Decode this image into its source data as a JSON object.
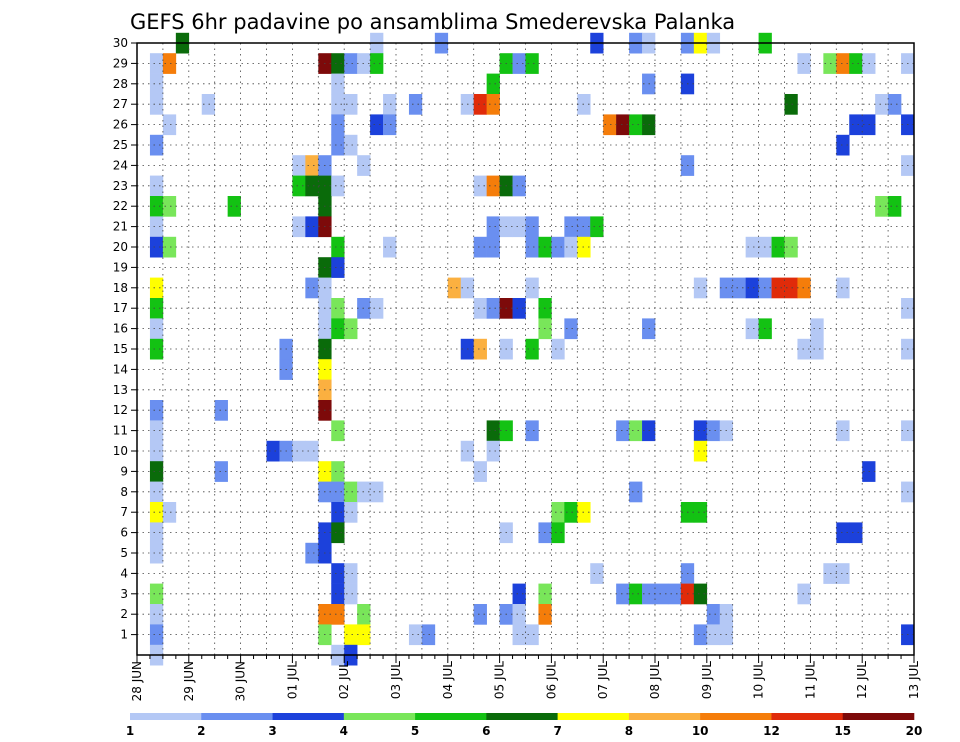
{
  "chart_data": {
    "type": "heatmap",
    "title": "GEFS 6hr padavine po ansamblima Smederevska Palanka",
    "xlabel": "",
    "ylabel": "",
    "x_ticks": [
      "28 JUN",
      "29 JUN",
      "30 JUN",
      "01 JUL",
      "02 JUL",
      "03 JUL",
      "04 JUL",
      "05 JUL",
      "06 JUL",
      "07 JUL",
      "08 JUL",
      "09 JUL",
      "10 JUL",
      "11 JUL",
      "12 JUL",
      "13 JUL"
    ],
    "y_ticks": [
      "1",
      "2",
      "3",
      "4",
      "5",
      "6",
      "7",
      "8",
      "9",
      "10",
      "11",
      "12",
      "13",
      "14",
      "15",
      "16",
      "17",
      "18",
      "19",
      "20",
      "21",
      "22",
      "23",
      "24",
      "25",
      "26",
      "27",
      "28",
      "29",
      "30"
    ],
    "x_range_steps": [
      0,
      60
    ],
    "y_range": [
      0,
      30
    ],
    "steps_per_day": 4,
    "grid": true,
    "colorbar": {
      "placement": "bottom",
      "colors": [
        "#b4c8f5",
        "#6a8ff0",
        "#1c41db",
        "#79e65a",
        "#13c213",
        "#0a6b0a",
        "#ffff00",
        "#fbb040",
        "#f57d0a",
        "#e02b0a",
        "#7d0a0a"
      ],
      "labels": [
        "1",
        "2",
        "3",
        "4",
        "5",
        "6",
        "7",
        "8",
        "10",
        "12",
        "15",
        "20"
      ]
    },
    "cells": [
      [
        30,
        3,
        5
      ],
      [
        30,
        18,
        0
      ],
      [
        30,
        23,
        1
      ],
      [
        30,
        35,
        2
      ],
      [
        30,
        38,
        1
      ],
      [
        30,
        39,
        0
      ],
      [
        30,
        42,
        1
      ],
      [
        30,
        43,
        6
      ],
      [
        30,
        44,
        0
      ],
      [
        30,
        48,
        4
      ],
      [
        29,
        1,
        0
      ],
      [
        29,
        2,
        8
      ],
      [
        29,
        14,
        10
      ],
      [
        29,
        15,
        5
      ],
      [
        29,
        16,
        1
      ],
      [
        29,
        17,
        0
      ],
      [
        29,
        18,
        4
      ],
      [
        29,
        28,
        4
      ],
      [
        29,
        29,
        1
      ],
      [
        29,
        30,
        4
      ],
      [
        29,
        51,
        0
      ],
      [
        29,
        53,
        3
      ],
      [
        29,
        54,
        8
      ],
      [
        29,
        55,
        4
      ],
      [
        29,
        56,
        0
      ],
      [
        29,
        59,
        0
      ],
      [
        28,
        1,
        0
      ],
      [
        28,
        15,
        0
      ],
      [
        28,
        27,
        4
      ],
      [
        28,
        39,
        1
      ],
      [
        28,
        42,
        2
      ],
      [
        27,
        1,
        0
      ],
      [
        27,
        5,
        0
      ],
      [
        27,
        15,
        0
      ],
      [
        27,
        16,
        0
      ],
      [
        27,
        19,
        0
      ],
      [
        27,
        21,
        1
      ],
      [
        27,
        25,
        0
      ],
      [
        27,
        26,
        9
      ],
      [
        27,
        27,
        8
      ],
      [
        27,
        34,
        0
      ],
      [
        27,
        50,
        5
      ],
      [
        27,
        57,
        0
      ],
      [
        27,
        58,
        1
      ],
      [
        26,
        2,
        0
      ],
      [
        26,
        15,
        1
      ],
      [
        26,
        18,
        2
      ],
      [
        26,
        19,
        1
      ],
      [
        26,
        36,
        8
      ],
      [
        26,
        37,
        10
      ],
      [
        26,
        38,
        4
      ],
      [
        26,
        39,
        5
      ],
      [
        26,
        55,
        2
      ],
      [
        26,
        56,
        2
      ],
      [
        26,
        59,
        2
      ],
      [
        25,
        1,
        1
      ],
      [
        25,
        15,
        1
      ],
      [
        25,
        16,
        0
      ],
      [
        25,
        54,
        2
      ],
      [
        24,
        12,
        0
      ],
      [
        24,
        13,
        7
      ],
      [
        24,
        14,
        1
      ],
      [
        24,
        17,
        0
      ],
      [
        24,
        42,
        1
      ],
      [
        24,
        59,
        0
      ],
      [
        23,
        1,
        0
      ],
      [
        23,
        12,
        4
      ],
      [
        23,
        13,
        5
      ],
      [
        23,
        14,
        5
      ],
      [
        23,
        15,
        0
      ],
      [
        23,
        26,
        0
      ],
      [
        23,
        27,
        8
      ],
      [
        23,
        28,
        5
      ],
      [
        23,
        29,
        1
      ],
      [
        22,
        1,
        4
      ],
      [
        22,
        2,
        3
      ],
      [
        22,
        7,
        4
      ],
      [
        22,
        14,
        5
      ],
      [
        22,
        57,
        3
      ],
      [
        22,
        58,
        4
      ],
      [
        21,
        1,
        0
      ],
      [
        21,
        12,
        0
      ],
      [
        21,
        13,
        2
      ],
      [
        21,
        14,
        10
      ],
      [
        21,
        27,
        1
      ],
      [
        21,
        28,
        0
      ],
      [
        21,
        29,
        0
      ],
      [
        21,
        30,
        1
      ],
      [
        21,
        33,
        1
      ],
      [
        21,
        34,
        1
      ],
      [
        21,
        35,
        4
      ],
      [
        20,
        1,
        2
      ],
      [
        20,
        2,
        3
      ],
      [
        20,
        15,
        4
      ],
      [
        20,
        19,
        0
      ],
      [
        20,
        26,
        1
      ],
      [
        20,
        27,
        1
      ],
      [
        20,
        30,
        1
      ],
      [
        20,
        31,
        4
      ],
      [
        20,
        32,
        1
      ],
      [
        20,
        33,
        0
      ],
      [
        20,
        34,
        6
      ],
      [
        20,
        47,
        0
      ],
      [
        20,
        48,
        0
      ],
      [
        20,
        49,
        4
      ],
      [
        20,
        50,
        3
      ],
      [
        19,
        14,
        5
      ],
      [
        19,
        15,
        2
      ],
      [
        18,
        1,
        6
      ],
      [
        18,
        13,
        1
      ],
      [
        18,
        14,
        0
      ],
      [
        18,
        24,
        7
      ],
      [
        18,
        25,
        0
      ],
      [
        18,
        30,
        0
      ],
      [
        18,
        43,
        0
      ],
      [
        18,
        45,
        1
      ],
      [
        18,
        46,
        1
      ],
      [
        18,
        47,
        2
      ],
      [
        18,
        48,
        1
      ],
      [
        18,
        49,
        9
      ],
      [
        18,
        50,
        9
      ],
      [
        18,
        51,
        8
      ],
      [
        18,
        54,
        0
      ],
      [
        17,
        1,
        4
      ],
      [
        17,
        14,
        0
      ],
      [
        17,
        15,
        3
      ],
      [
        17,
        17,
        1
      ],
      [
        17,
        18,
        0
      ],
      [
        17,
        26,
        0
      ],
      [
        17,
        27,
        1
      ],
      [
        17,
        28,
        10
      ],
      [
        17,
        29,
        2
      ],
      [
        17,
        31,
        4
      ],
      [
        17,
        59,
        0
      ],
      [
        16,
        1,
        0
      ],
      [
        16,
        14,
        0
      ],
      [
        16,
        15,
        4
      ],
      [
        16,
        16,
        3
      ],
      [
        16,
        31,
        3
      ],
      [
        16,
        33,
        1
      ],
      [
        16,
        39,
        1
      ],
      [
        16,
        47,
        0
      ],
      [
        16,
        48,
        4
      ],
      [
        16,
        52,
        0
      ],
      [
        15,
        1,
        4
      ],
      [
        15,
        11,
        1
      ],
      [
        15,
        14,
        5
      ],
      [
        15,
        25,
        2
      ],
      [
        15,
        26,
        7
      ],
      [
        15,
        28,
        0
      ],
      [
        15,
        30,
        4
      ],
      [
        15,
        32,
        0
      ],
      [
        15,
        51,
        0
      ],
      [
        15,
        52,
        0
      ],
      [
        15,
        59,
        0
      ],
      [
        14,
        11,
        1
      ],
      [
        14,
        14,
        6
      ],
      [
        13,
        14,
        7
      ],
      [
        12,
        1,
        1
      ],
      [
        12,
        6,
        1
      ],
      [
        12,
        14,
        10
      ],
      [
        11,
        1,
        0
      ],
      [
        11,
        15,
        3
      ],
      [
        11,
        27,
        5
      ],
      [
        11,
        28,
        4
      ],
      [
        11,
        30,
        1
      ],
      [
        11,
        37,
        1
      ],
      [
        11,
        38,
        3
      ],
      [
        11,
        39,
        2
      ],
      [
        11,
        43,
        2
      ],
      [
        11,
        44,
        1
      ],
      [
        11,
        45,
        0
      ],
      [
        11,
        54,
        0
      ],
      [
        11,
        59,
        0
      ],
      [
        10,
        1,
        0
      ],
      [
        10,
        10,
        2
      ],
      [
        10,
        11,
        1
      ],
      [
        10,
        12,
        0
      ],
      [
        10,
        13,
        0
      ],
      [
        10,
        25,
        0
      ],
      [
        10,
        27,
        0
      ],
      [
        10,
        43,
        6
      ],
      [
        9,
        1,
        5
      ],
      [
        9,
        6,
        1
      ],
      [
        9,
        14,
        6
      ],
      [
        9,
        15,
        3
      ],
      [
        9,
        26,
        0
      ],
      [
        9,
        56,
        2
      ],
      [
        8,
        1,
        0
      ],
      [
        8,
        14,
        1
      ],
      [
        8,
        15,
        1
      ],
      [
        8,
        16,
        3
      ],
      [
        8,
        17,
        0
      ],
      [
        8,
        18,
        0
      ],
      [
        8,
        38,
        1
      ],
      [
        8,
        59,
        0
      ],
      [
        7,
        1,
        6
      ],
      [
        7,
        2,
        0
      ],
      [
        7,
        15,
        2
      ],
      [
        7,
        16,
        0
      ],
      [
        7,
        32,
        3
      ],
      [
        7,
        33,
        4
      ],
      [
        7,
        34,
        6
      ],
      [
        7,
        42,
        4
      ],
      [
        7,
        43,
        4
      ],
      [
        6,
        1,
        0
      ],
      [
        6,
        14,
        2
      ],
      [
        6,
        15,
        5
      ],
      [
        6,
        28,
        0
      ],
      [
        6,
        31,
        1
      ],
      [
        6,
        32,
        4
      ],
      [
        6,
        54,
        2
      ],
      [
        6,
        55,
        2
      ],
      [
        5,
        1,
        0
      ],
      [
        5,
        13,
        1
      ],
      [
        5,
        14,
        2
      ],
      [
        4,
        15,
        2
      ],
      [
        4,
        16,
        0
      ],
      [
        4,
        35,
        0
      ],
      [
        4,
        42,
        1
      ],
      [
        4,
        53,
        0
      ],
      [
        4,
        54,
        0
      ],
      [
        3,
        1,
        3
      ],
      [
        3,
        15,
        2
      ],
      [
        3,
        16,
        0
      ],
      [
        3,
        29,
        2
      ],
      [
        3,
        31,
        3
      ],
      [
        3,
        37,
        1
      ],
      [
        3,
        38,
        4
      ],
      [
        3,
        39,
        1
      ],
      [
        3,
        40,
        1
      ],
      [
        3,
        41,
        1
      ],
      [
        3,
        42,
        9
      ],
      [
        3,
        43,
        5
      ],
      [
        3,
        51,
        0
      ],
      [
        2,
        1,
        0
      ],
      [
        2,
        14,
        8
      ],
      [
        2,
        15,
        8
      ],
      [
        2,
        17,
        3
      ],
      [
        2,
        26,
        1
      ],
      [
        2,
        28,
        1
      ],
      [
        2,
        29,
        0
      ],
      [
        2,
        31,
        8
      ],
      [
        2,
        44,
        1
      ],
      [
        2,
        45,
        0
      ],
      [
        1,
        1,
        1
      ],
      [
        1,
        14,
        3
      ],
      [
        1,
        16,
        6
      ],
      [
        1,
        17,
        6
      ],
      [
        1,
        21,
        0
      ],
      [
        1,
        22,
        1
      ],
      [
        1,
        29,
        0
      ],
      [
        1,
        30,
        0
      ],
      [
        1,
        43,
        1
      ],
      [
        1,
        44,
        0
      ],
      [
        1,
        45,
        0
      ],
      [
        1,
        59,
        2
      ],
      [
        0,
        1,
        0
      ],
      [
        0,
        15,
        0
      ],
      [
        0,
        16,
        2
      ]
    ]
  }
}
